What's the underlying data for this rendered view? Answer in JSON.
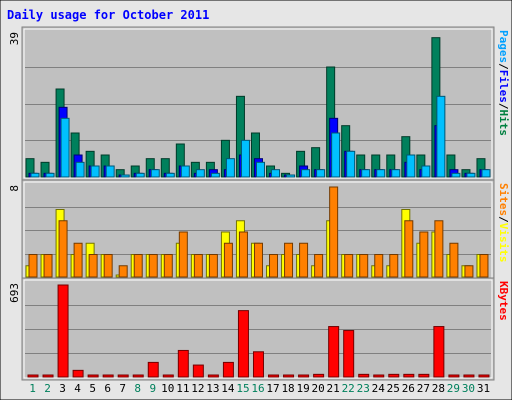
{
  "chart_data": {
    "type": "bar",
    "title": "Daily usage for October 2011",
    "x": [
      "1",
      "2",
      "3",
      "4",
      "5",
      "6",
      "7",
      "8",
      "9",
      "10",
      "11",
      "12",
      "13",
      "14",
      "15",
      "16",
      "17",
      "18",
      "19",
      "20",
      "21",
      "22",
      "23",
      "24",
      "25",
      "26",
      "27",
      "28",
      "29",
      "30",
      "31"
    ],
    "weekend_days": [
      "1",
      "2",
      "8",
      "9",
      "15",
      "16",
      "22",
      "23",
      "29",
      "30"
    ],
    "panels": [
      {
        "id": "hits-panel",
        "max_label": "39",
        "ylim": [
          0,
          39
        ],
        "legend": [
          {
            "text": "Pages",
            "color": "#00a0ff"
          },
          {
            "text": "/",
            "color": "#000000"
          },
          {
            "text": "Files",
            "color": "#0000ff"
          },
          {
            "text": "/",
            "color": "#000000"
          },
          {
            "text": "Hits",
            "color": "#008040"
          }
        ],
        "series": [
          {
            "name": "Hits",
            "color": "#00805c",
            "values": [
              5,
              4,
              24,
              12,
              7,
              6,
              2,
              3,
              5,
              5,
              9,
              4,
              4,
              10,
              22,
              12,
              3,
              1,
              7,
              8,
              30,
              14,
              6,
              6,
              6,
              11,
              6,
              38,
              6,
              2,
              5
            ]
          },
          {
            "name": "Files",
            "color": "#0000ff",
            "values": [
              1,
              1,
              19,
              6,
              3,
              3,
              0,
              1,
              2,
              1,
              3,
              1,
              2,
              2,
              6,
              5,
              1,
              0,
              3,
              2,
              16,
              7,
              2,
              2,
              2,
              4,
              2,
              14,
              2,
              1,
              2
            ]
          },
          {
            "name": "Pages",
            "color": "#00c0ff",
            "values": [
              1,
              1,
              16,
              4,
              3,
              3,
              0,
              1,
              2,
              1,
              3,
              2,
              1,
              5,
              10,
              4,
              2,
              0,
              2,
              2,
              12,
              7,
              2,
              2,
              2,
              6,
              3,
              22,
              1,
              1,
              2
            ]
          }
        ]
      },
      {
        "id": "visits-panel",
        "max_label": "8",
        "ylim": [
          0,
          8
        ],
        "legend": [
          {
            "text": "Sites",
            "color": "#ff8000"
          },
          {
            "text": "/",
            "color": "#000000"
          },
          {
            "text": "Visits",
            "color": "#ffff00"
          }
        ],
        "series": [
          {
            "name": "Visits",
            "color": "#ffff00",
            "values": [
              1,
              2,
              6,
              2,
              3,
              2,
              0,
              2,
              2,
              2,
              3,
              2,
              2,
              4,
              5,
              3,
              1,
              2,
              2,
              1,
              5,
              2,
              2,
              1,
              1,
              6,
              3,
              4,
              2,
              1,
              2
            ]
          },
          {
            "name": "Sites",
            "color": "#ff8000",
            "values": [
              2,
              2,
              5,
              3,
              2,
              2,
              1,
              2,
              2,
              2,
              4,
              2,
              2,
              3,
              4,
              3,
              2,
              3,
              3,
              2,
              8,
              2,
              2,
              2,
              2,
              5,
              4,
              5,
              3,
              1,
              2
            ]
          }
        ]
      },
      {
        "id": "kbytes-panel",
        "max_label": "693",
        "ylim": [
          0,
          693
        ],
        "legend": [
          {
            "text": "KBytes",
            "color": "#ff0000"
          }
        ],
        "series": [
          {
            "name": "KBytes",
            "color": "#ff0000",
            "values": [
              5,
              5,
              693,
              50,
              5,
              10,
              5,
              5,
              110,
              10,
              200,
              90,
              5,
              110,
              500,
              190,
              10,
              10,
              10,
              20,
              380,
              350,
              20,
              10,
              20,
              20,
              20,
              380,
              10,
              10,
              10
            ]
          }
        ]
      }
    ]
  },
  "colors": {
    "panel_bg": "#c0c0c0",
    "page_bg": "#e6e6e6",
    "title": "#0000ff",
    "weekday_label": "#000000",
    "weekend_label": "#00805c"
  }
}
